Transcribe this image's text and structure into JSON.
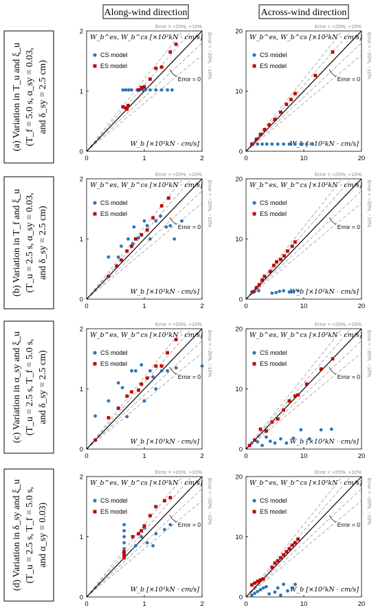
{
  "headers": {
    "left": "Along-wind direction",
    "right": "Across-wind direction"
  },
  "rows": [
    {
      "line1": "(a) Variation in  T_u  and  ξ_u",
      "line2": "(T_f = 5.0 s,  α_sy = 0.03,",
      "line3": "and  δ_sy = 2.5 cm)"
    },
    {
      "line1": "(b) Variation in  T_f  and  ξ_u",
      "line2": "(T_u = 2.5 s,  α_sy = 0.03,",
      "line3": "and  δ_sy = 2.5 cm)"
    },
    {
      "line1": "(c) Variation in  α_sy  and  ξ_u",
      "line2": "(T_u = 2.5 s,  T_f = 5.0 s,",
      "line3": "and  δ_sy = 2.5 cm)"
    },
    {
      "line1": "(d) Variation in  δ_sy  and  ξ_u",
      "line2": "(T_u = 2.5 s,  T_f = 5.0 s,",
      "line3": "and  α_sy = 0.03)"
    }
  ],
  "labels": {
    "err_top": "Error = +20%, +10%",
    "err_right": "Error = −20%, −10%",
    "err_zero": "Error = 0",
    "legend_cs": "CS model",
    "legend_es": "ES model",
    "ylabel": "W_b^es, W_b^cs  [×10²kN · cm/s]",
    "xlabel": "W_b  [×10²kN · cm/s]"
  },
  "colors": {
    "cs": "#2e75b6",
    "es": "#c00000",
    "guide": "#9a9a9a",
    "axis": "#000000"
  },
  "chart_data": [
    {
      "type": "scatter",
      "panel": "a-along",
      "xlim": [
        0,
        2
      ],
      "ylim": [
        0,
        2
      ],
      "ticks": [
        0,
        1,
        2
      ],
      "series": [
        {
          "name": "CS model",
          "points": [
            [
              0.63,
              1.02
            ],
            [
              0.68,
              1.02
            ],
            [
              0.73,
              1.02
            ],
            [
              0.78,
              1.02
            ],
            [
              0.88,
              1.02
            ],
            [
              0.92,
              1.02
            ],
            [
              0.97,
              1.02
            ],
            [
              1.02,
              1.02
            ],
            [
              1.1,
              1.02
            ],
            [
              1.2,
              1.02
            ],
            [
              1.3,
              1.02
            ],
            [
              1.4,
              1.02
            ],
            [
              1.48,
              1.02
            ]
          ]
        },
        {
          "name": "ES model",
          "points": [
            [
              0.63,
              0.74
            ],
            [
              0.68,
              0.72
            ],
            [
              0.72,
              0.76
            ],
            [
              0.7,
              0.7
            ],
            [
              0.9,
              1.02
            ],
            [
              0.95,
              1.06
            ],
            [
              1.0,
              1.07
            ],
            [
              1.1,
              1.2
            ],
            [
              1.2,
              1.38
            ],
            [
              1.3,
              1.4
            ],
            [
              1.45,
              1.65
            ],
            [
              1.55,
              1.78
            ]
          ]
        }
      ]
    },
    {
      "type": "scatter",
      "panel": "a-across",
      "xlim": [
        0,
        20
      ],
      "ylim": [
        0,
        20
      ],
      "ticks": [
        0,
        10,
        20
      ],
      "series": [
        {
          "name": "CS model",
          "points": [
            [
              1.2,
              1.2
            ],
            [
              2.0,
              1.2
            ],
            [
              2.8,
              1.2
            ],
            [
              3.6,
              1.2
            ],
            [
              4.5,
              1.2
            ],
            [
              5.5,
              1.2
            ],
            [
              6.5,
              1.2
            ],
            [
              7.5,
              1.2
            ],
            [
              8.5,
              1.2
            ],
            [
              9.5,
              1.2
            ],
            [
              10.5,
              1.2
            ],
            [
              11.5,
              1.2
            ]
          ]
        },
        {
          "name": "ES model",
          "points": [
            [
              1.0,
              1.2
            ],
            [
              1.8,
              2.0
            ],
            [
              2.5,
              2.8
            ],
            [
              3.2,
              3.6
            ],
            [
              4.0,
              4.4
            ],
            [
              5.0,
              5.3
            ],
            [
              6.0,
              6.5
            ],
            [
              7.0,
              7.8
            ],
            [
              7.8,
              8.6
            ],
            [
              8.5,
              9.6
            ],
            [
              12.0,
              12.6
            ],
            [
              15.0,
              16.5
            ]
          ]
        }
      ]
    },
    {
      "type": "scatter",
      "panel": "b-along",
      "xlim": [
        0,
        2
      ],
      "ylim": [
        0,
        2
      ],
      "ticks": [
        0,
        1,
        2
      ],
      "series": [
        {
          "name": "CS model",
          "points": [
            [
              0.38,
              0.7
            ],
            [
              0.55,
              0.7
            ],
            [
              0.6,
              0.88
            ],
            [
              0.72,
              1.0
            ],
            [
              0.8,
              0.92
            ],
            [
              0.82,
              1.2
            ],
            [
              0.9,
              1.02
            ],
            [
              1.0,
              1.3
            ],
            [
              1.05,
              1.22
            ],
            [
              1.1,
              1.0
            ],
            [
              1.2,
              1.3
            ],
            [
              1.28,
              1.38
            ],
            [
              1.38,
              1.2
            ],
            [
              1.45,
              1.22
            ],
            [
              1.52,
              1.0
            ],
            [
              1.65,
              1.3
            ]
          ]
        },
        {
          "name": "ES model",
          "points": [
            [
              0.38,
              0.38
            ],
            [
              0.52,
              0.55
            ],
            [
              0.6,
              0.65
            ],
            [
              0.7,
              0.8
            ],
            [
              0.78,
              0.88
            ],
            [
              0.85,
              1.0
            ],
            [
              0.95,
              1.07
            ],
            [
              1.05,
              1.15
            ],
            [
              1.15,
              1.35
            ],
            [
              1.3,
              1.55
            ],
            [
              1.42,
              1.68
            ]
          ]
        }
      ]
    },
    {
      "type": "scatter",
      "panel": "b-across",
      "xlim": [
        0,
        20
      ],
      "ylim": [
        0,
        20
      ],
      "ticks": [
        0,
        10,
        20
      ],
      "series": [
        {
          "name": "CS model",
          "points": [
            [
              1.0,
              1.2
            ],
            [
              1.5,
              1.3
            ],
            [
              2.2,
              1.4
            ],
            [
              4.5,
              1.0
            ],
            [
              5.2,
              1.1
            ],
            [
              5.8,
              1.3
            ],
            [
              6.5,
              1.4
            ],
            [
              7.5,
              1.2
            ],
            [
              8.2,
              1.3
            ],
            [
              9.0,
              1.4
            ]
          ]
        },
        {
          "name": "ES model",
          "points": [
            [
              1.2,
              1.2
            ],
            [
              1.8,
              1.9
            ],
            [
              2.3,
              2.4
            ],
            [
              2.8,
              3.2
            ],
            [
              3.2,
              3.8
            ],
            [
              4.2,
              4.6
            ],
            [
              4.8,
              5.6
            ],
            [
              5.3,
              6.2
            ],
            [
              6.0,
              6.6
            ],
            [
              6.6,
              7.2
            ],
            [
              7.2,
              8.0
            ],
            [
              8.0,
              8.8
            ],
            [
              8.5,
              9.5
            ]
          ]
        }
      ]
    },
    {
      "type": "scatter",
      "panel": "c-along",
      "xlim": [
        0,
        2
      ],
      "ylim": [
        0,
        2
      ],
      "ticks": [
        0,
        1,
        2
      ],
      "series": [
        {
          "name": "CS model",
          "points": [
            [
              0.15,
              0.55
            ],
            [
              0.38,
              0.8
            ],
            [
              0.55,
              1.1
            ],
            [
              0.62,
              1.02
            ],
            [
              0.7,
              0.54
            ],
            [
              0.78,
              1.3
            ],
            [
              0.85,
              1.3
            ],
            [
              0.95,
              1.4
            ],
            [
              1.0,
              0.8
            ],
            [
              1.1,
              1.3
            ],
            [
              1.15,
              1.2
            ],
            [
              1.2,
              1.0
            ],
            [
              1.3,
              1.3
            ],
            [
              1.4,
              1.3
            ],
            [
              1.55,
              1.35
            ],
            [
              2.0,
              1.38
            ]
          ]
        },
        {
          "name": "ES model",
          "points": [
            [
              0.15,
              0.15
            ],
            [
              0.38,
              0.52
            ],
            [
              0.55,
              0.68
            ],
            [
              0.7,
              0.88
            ],
            [
              0.78,
              0.95
            ],
            [
              0.9,
              0.98
            ],
            [
              0.95,
              1.08
            ],
            [
              1.05,
              1.18
            ],
            [
              1.2,
              1.38
            ],
            [
              1.3,
              1.38
            ],
            [
              1.4,
              1.6
            ],
            [
              1.55,
              1.82
            ]
          ]
        }
      ]
    },
    {
      "type": "scatter",
      "panel": "c-across",
      "xlim": [
        0,
        20
      ],
      "ylim": [
        0,
        20
      ],
      "ticks": [
        0,
        10,
        20
      ],
      "series": [
        {
          "name": "CS model",
          "points": [
            [
              1.0,
              1.0
            ],
            [
              2.0,
              1.2
            ],
            [
              2.8,
              0.6
            ],
            [
              3.5,
              2.0
            ],
            [
              4.2,
              1.3
            ],
            [
              5.0,
              1.0
            ],
            [
              6.0,
              1.7
            ],
            [
              7.0,
              1.0
            ],
            [
              8.2,
              1.8
            ],
            [
              9.5,
              3.2
            ],
            [
              11.0,
              1.7
            ],
            [
              13.0,
              3.2
            ],
            [
              14.8,
              3.3
            ]
          ]
        },
        {
          "name": "ES model",
          "points": [
            [
              0.6,
              0.6
            ],
            [
              1.5,
              1.5
            ],
            [
              2.5,
              3.3
            ],
            [
              3.5,
              3.0
            ],
            [
              4.5,
              4.5
            ],
            [
              5.5,
              5.0
            ],
            [
              6.5,
              6.5
            ],
            [
              7.5,
              8.0
            ],
            [
              8.5,
              8.8
            ],
            [
              9.0,
              9.0
            ],
            [
              10.5,
              10.8
            ],
            [
              13.0,
              13.3
            ],
            [
              15.0,
              15.0
            ]
          ]
        }
      ]
    },
    {
      "type": "scatter",
      "panel": "d-along",
      "xlim": [
        0,
        2
      ],
      "ylim": [
        0,
        2
      ],
      "ticks": [
        0,
        1,
        2
      ],
      "series": [
        {
          "name": "CS model",
          "points": [
            [
              0.65,
              0.8
            ],
            [
              0.65,
              0.9
            ],
            [
              0.65,
              1.0
            ],
            [
              0.65,
              1.1
            ],
            [
              0.65,
              1.2
            ],
            [
              0.8,
              1.0
            ],
            [
              0.85,
              0.85
            ],
            [
              0.95,
              1.0
            ],
            [
              1.0,
              1.15
            ],
            [
              1.05,
              0.9
            ],
            [
              1.15,
              0.85
            ],
            [
              1.2,
              1.05
            ],
            [
              1.35,
              1.12
            ],
            [
              1.45,
              1.2
            ]
          ]
        },
        {
          "name": "ES model",
          "points": [
            [
              0.65,
              0.65
            ],
            [
              0.65,
              0.7
            ],
            [
              0.65,
              0.75
            ],
            [
              0.8,
              1.0
            ],
            [
              0.9,
              1.05
            ],
            [
              0.95,
              1.1
            ],
            [
              1.0,
              1.18
            ],
            [
              1.1,
              1.35
            ],
            [
              1.2,
              1.5
            ],
            [
              1.35,
              1.6
            ],
            [
              1.45,
              1.65
            ]
          ]
        }
      ]
    },
    {
      "type": "scatter",
      "panel": "d-across",
      "xlim": [
        0,
        20
      ],
      "ylim": [
        0,
        20
      ],
      "ticks": [
        0,
        10,
        20
      ],
      "series": [
        {
          "name": "CS model",
          "points": [
            [
              1.0,
              0.3
            ],
            [
              1.5,
              0.6
            ],
            [
              2.0,
              0.9
            ],
            [
              2.5,
              1.2
            ],
            [
              3.0,
              1.5
            ],
            [
              3.5,
              1.7
            ],
            [
              4.0,
              0.5
            ],
            [
              5.0,
              0.8
            ],
            [
              5.5,
              1.5
            ],
            [
              6.0,
              0.3
            ],
            [
              6.5,
              2.1
            ],
            [
              7.2,
              1.0
            ],
            [
              8.0,
              1.5
            ],
            [
              8.5,
              2.1
            ]
          ]
        },
        {
          "name": "ES model",
          "points": [
            [
              1.0,
              2.0
            ],
            [
              1.5,
              2.3
            ],
            [
              2.0,
              2.6
            ],
            [
              2.5,
              2.8
            ],
            [
              3.0,
              3.0
            ],
            [
              4.5,
              4.9
            ],
            [
              5.0,
              5.6
            ],
            [
              5.5,
              6.0
            ],
            [
              6.0,
              6.5
            ],
            [
              6.5,
              7.0
            ],
            [
              7.0,
              7.5
            ],
            [
              7.5,
              8.0
            ],
            [
              8.0,
              8.6
            ],
            [
              8.5,
              9.0
            ],
            [
              9.0,
              9.6
            ]
          ]
        }
      ]
    }
  ]
}
